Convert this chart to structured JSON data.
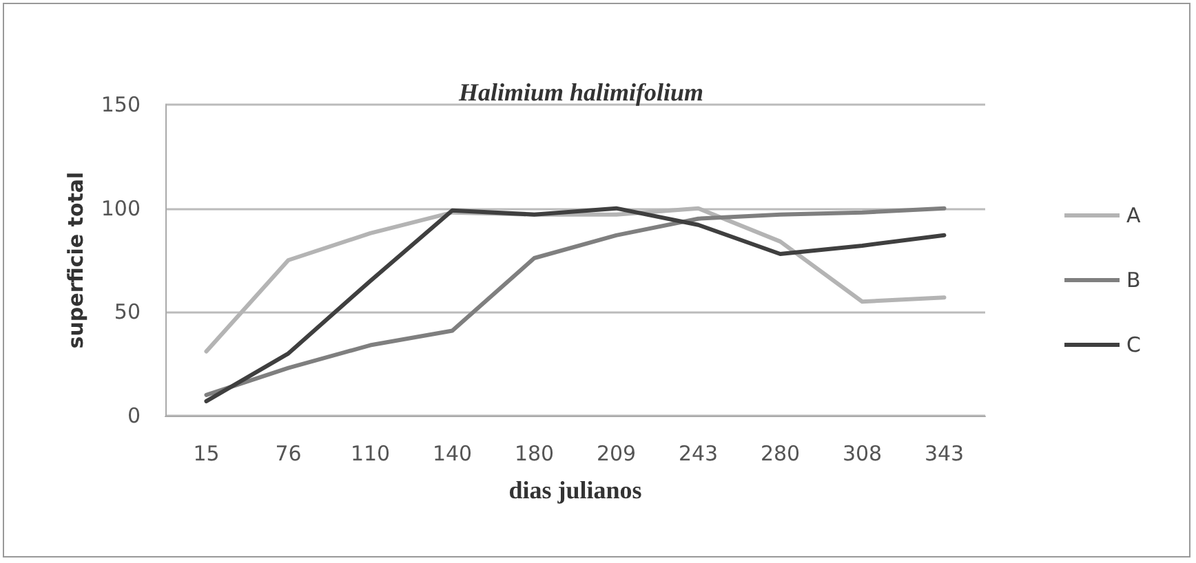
{
  "chart_data": {
    "type": "line",
    "title": "Halimium halimifolium",
    "xlabel": "dias julianos",
    "ylabel": "superficie total",
    "categories": [
      "15",
      "76",
      "110",
      "140",
      "180",
      "209",
      "243",
      "280",
      "308",
      "343"
    ],
    "series": [
      {
        "name": "A",
        "color": "#b4b4b4",
        "values": [
          31,
          75,
          88,
          98,
          97,
          97,
          100,
          84,
          55,
          57
        ]
      },
      {
        "name": "B",
        "color": "#7f7f7f",
        "values": [
          10,
          23,
          34,
          41,
          76,
          87,
          95,
          97,
          98,
          100
        ]
      },
      {
        "name": "C",
        "color": "#3f3f3f",
        "values": [
          7,
          30,
          65,
          99,
          97,
          100,
          92,
          78,
          82,
          87
        ]
      }
    ],
    "ylim": [
      0,
      150
    ],
    "yticks": [
      0,
      50,
      100,
      150
    ],
    "grid": "y",
    "legend": "right",
    "marker": "none",
    "line_style": "solid"
  }
}
